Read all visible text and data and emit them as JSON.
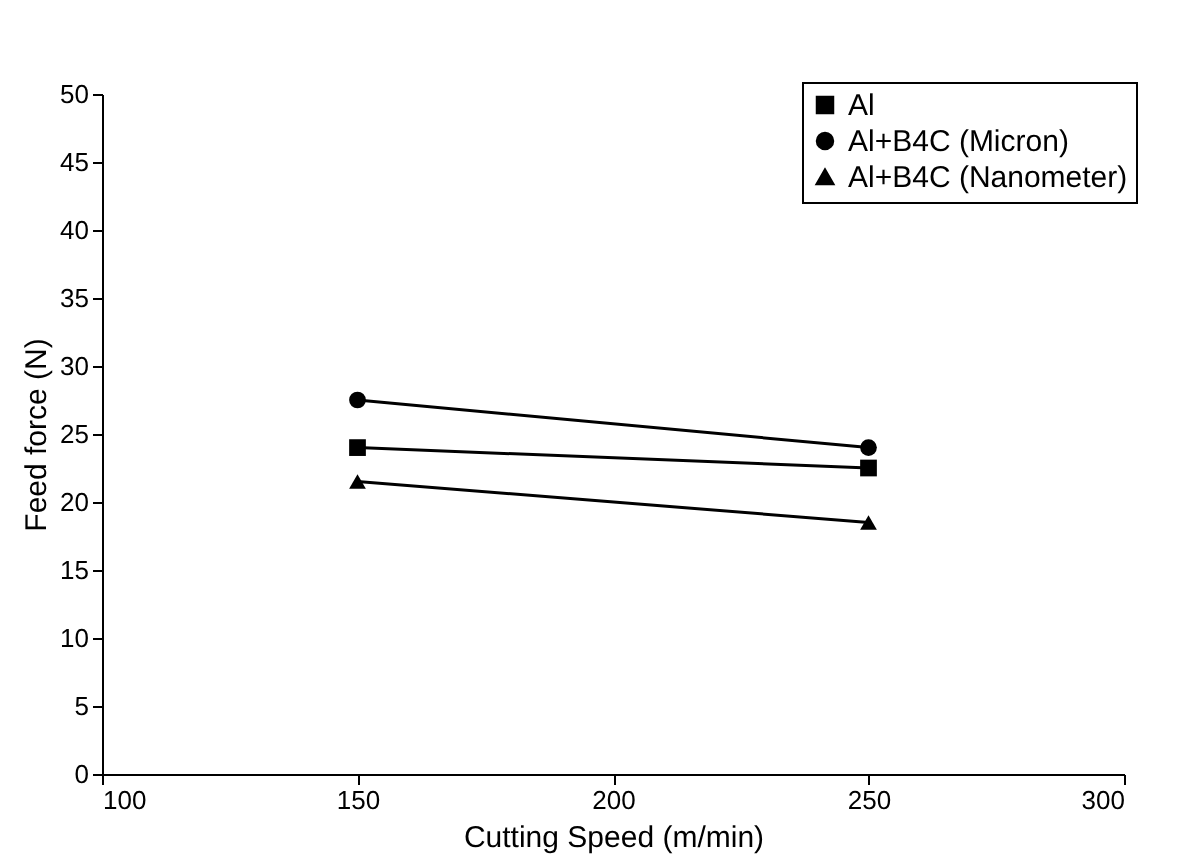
{
  "chart_data": {
    "type": "line",
    "xlabel": "Cutting Speed (m/min)",
    "ylabel": "Feed force (N)",
    "x": [
      150,
      250
    ],
    "series": [
      {
        "name": "Al",
        "color": "#000000",
        "values": [
          24,
          22.5
        ],
        "marker": "square"
      },
      {
        "name": "Al+B4C (Micron)",
        "color": "#000000",
        "values": [
          27.5,
          24
        ],
        "marker": "circle"
      },
      {
        "name": "Al+B4C (Nanometer)",
        "color": "#000000",
        "values": [
          21.5,
          18.5
        ],
        "marker": "triangle"
      }
    ],
    "xlim": [
      100,
      300
    ],
    "xticks": [
      100,
      150,
      200,
      250,
      300
    ],
    "ylim": [
      0,
      50
    ],
    "yticks": [
      0,
      5,
      10,
      15,
      20,
      25,
      30,
      35,
      40,
      45,
      50
    ],
    "grid": false,
    "legend": "top right",
    "line_style": "solid"
  }
}
